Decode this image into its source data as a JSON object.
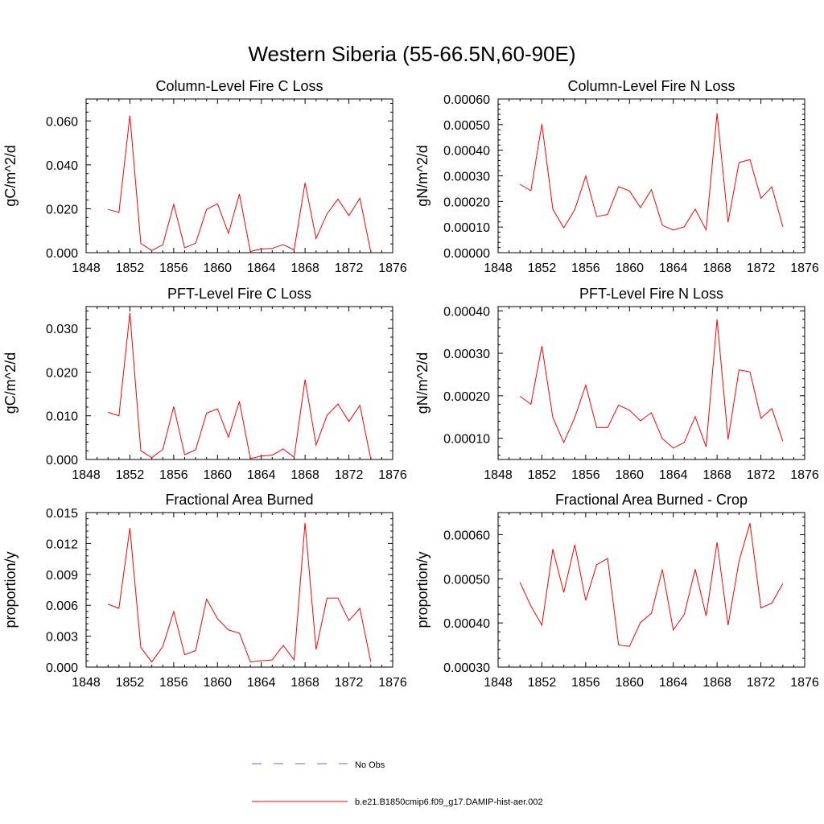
{
  "figure": {
    "title": "Western Siberia (55-66.5N,60-90E)",
    "line_color": "#ff0000",
    "obs_color": "#6666cc"
  },
  "legend": {
    "obs_label": "No Obs",
    "model_label": "b.e21.B1850cmip6.f09_g17.DAMIP-hist-aer.002"
  },
  "chart_data": [
    {
      "type": "line",
      "title": "Column-Level Fire C Loss",
      "ylabel": "gC/m^2/d",
      "xlim": [
        1848,
        1876
      ],
      "xticks": [
        "1848",
        "1852",
        "1856",
        "1860",
        "1864",
        "1868",
        "1872",
        "1876"
      ],
      "ylim": [
        0,
        0.07
      ],
      "yticks": [
        "0.000",
        "0.020",
        "0.040",
        "0.060"
      ],
      "ytick_values": [
        0,
        0.02,
        0.04,
        0.06
      ],
      "x": [
        1850,
        1851,
        1852,
        1853,
        1854,
        1855,
        1856,
        1857,
        1858,
        1859,
        1860,
        1861,
        1862,
        1863,
        1864,
        1865,
        1866,
        1867,
        1868,
        1869,
        1870,
        1871,
        1872,
        1873,
        1874
      ],
      "values": [
        0.0197,
        0.0183,
        0.0625,
        0.0042,
        0.001,
        0.0036,
        0.022,
        0.0022,
        0.0043,
        0.0197,
        0.0223,
        0.0088,
        0.0267,
        0.0005,
        0.0017,
        0.0019,
        0.0037,
        0.0012,
        0.0318,
        0.0065,
        0.0177,
        0.0244,
        0.0169,
        0.0248,
        0.0003
      ]
    },
    {
      "type": "line",
      "title": "Column-Level Fire N Loss",
      "ylabel": "gN/m^2/d",
      "xlim": [
        1848,
        1876
      ],
      "xticks": [
        "1848",
        "1852",
        "1856",
        "1860",
        "1864",
        "1868",
        "1872",
        "1876"
      ],
      "ylim": [
        0,
        0.0006
      ],
      "yticks": [
        "0.00000",
        "0.00010",
        "0.00020",
        "0.00030",
        "0.00040",
        "0.00050",
        "0.00060"
      ],
      "ytick_values": [
        0,
        0.0001,
        0.0002,
        0.0003,
        0.0004,
        0.0005,
        0.0006
      ],
      "x": [
        1850,
        1851,
        1852,
        1853,
        1854,
        1855,
        1856,
        1857,
        1858,
        1859,
        1860,
        1861,
        1862,
        1863,
        1864,
        1865,
        1866,
        1867,
        1868,
        1869,
        1870,
        1871,
        1872,
        1873,
        1874
      ],
      "values": [
        0.000267,
        0.000242,
        0.000502,
        0.00017,
        9.7e-05,
        0.000168,
        0.000299,
        0.000141,
        0.000149,
        0.000258,
        0.000241,
        0.000176,
        0.000246,
        0.000107,
        8.8e-05,
        0.000101,
        0.00017,
        8.9e-05,
        0.000544,
        0.000119,
        0.000352,
        0.000363,
        0.000212,
        0.000257,
        0.000101
      ]
    },
    {
      "type": "line",
      "title": "PFT-Level Fire C Loss",
      "ylabel": "gC/m^2/d",
      "xlim": [
        1848,
        1876
      ],
      "xticks": [
        "1848",
        "1852",
        "1856",
        "1860",
        "1864",
        "1868",
        "1872",
        "1876"
      ],
      "ylim": [
        0,
        0.035
      ],
      "yticks": [
        "0.000",
        "0.010",
        "0.020",
        "0.030"
      ],
      "ytick_values": [
        0,
        0.01,
        0.02,
        0.03
      ],
      "x": [
        1850,
        1851,
        1852,
        1853,
        1854,
        1855,
        1856,
        1857,
        1858,
        1859,
        1860,
        1861,
        1862,
        1863,
        1864,
        1865,
        1866,
        1867,
        1868,
        1869,
        1870,
        1871,
        1872,
        1873,
        1874
      ],
      "values": [
        0.0108,
        0.01,
        0.0335,
        0.002,
        0.0004,
        0.0023,
        0.0121,
        0.0011,
        0.0022,
        0.0106,
        0.0116,
        0.0051,
        0.0133,
        0.0002,
        0.0008,
        0.001,
        0.0024,
        0.0005,
        0.0183,
        0.0033,
        0.0101,
        0.0127,
        0.0087,
        0.0124,
        0.0001
      ]
    },
    {
      "type": "line",
      "title": "PFT-Level Fire N Loss",
      "ylabel": "gN/m^2/d",
      "xlim": [
        1848,
        1876
      ],
      "xticks": [
        "1848",
        "1852",
        "1856",
        "1860",
        "1864",
        "1868",
        "1872",
        "1876"
      ],
      "ylim": [
        5e-05,
        0.00041
      ],
      "yticks": [
        "0.00010",
        "0.00020",
        "0.00030",
        "0.00040"
      ],
      "ytick_values": [
        0.0001,
        0.0002,
        0.0003,
        0.0004
      ],
      "x": [
        1850,
        1851,
        1852,
        1853,
        1854,
        1855,
        1856,
        1857,
        1858,
        1859,
        1860,
        1861,
        1862,
        1863,
        1864,
        1865,
        1866,
        1867,
        1868,
        1869,
        1870,
        1871,
        1872,
        1873,
        1874
      ],
      "values": [
        0.000199,
        0.00018,
        0.000317,
        0.000149,
        9e-05,
        0.000149,
        0.000225,
        0.000125,
        0.000125,
        0.000178,
        0.000166,
        0.000141,
        0.00016,
        9.9e-05,
        7.7e-05,
        9e-05,
        0.000151,
        8e-05,
        0.00038,
        9.7e-05,
        0.000261,
        0.000256,
        0.000147,
        0.00017,
        9.3e-05
      ]
    },
    {
      "type": "line",
      "title": "Fractional Area Burned",
      "ylabel": "proportion/y",
      "xlim": [
        1848,
        1876
      ],
      "xticks": [
        "1848",
        "1852",
        "1856",
        "1860",
        "1864",
        "1868",
        "1872",
        "1876"
      ],
      "ylim": [
        0,
        0.015
      ],
      "yticks": [
        "0.000",
        "0.003",
        "0.006",
        "0.009",
        "0.012",
        "0.015"
      ],
      "ytick_values": [
        0,
        0.003,
        0.006,
        0.009,
        0.012,
        0.015
      ],
      "x": [
        1850,
        1851,
        1852,
        1853,
        1854,
        1855,
        1856,
        1857,
        1858,
        1859,
        1860,
        1861,
        1862,
        1863,
        1864,
        1865,
        1866,
        1867,
        1868,
        1869,
        1870,
        1871,
        1872,
        1873,
        1874
      ],
      "values": [
        0.0061,
        0.0057,
        0.0135,
        0.0019,
        0.0005,
        0.002,
        0.0054,
        0.0012,
        0.0016,
        0.0066,
        0.0047,
        0.0036,
        0.0033,
        0.0005,
        0.0006,
        0.0007,
        0.0021,
        0.0007,
        0.014,
        0.0017,
        0.0067,
        0.0067,
        0.0045,
        0.0057,
        0.0005
      ]
    },
    {
      "type": "line",
      "title": "Fractional Area Burned - Crop",
      "ylabel": "proportion/y",
      "xlim": [
        1848,
        1876
      ],
      "xticks": [
        "1848",
        "1852",
        "1856",
        "1860",
        "1864",
        "1868",
        "1872",
        "1876"
      ],
      "ylim": [
        0.0003,
        0.00065
      ],
      "yticks": [
        "0.00030",
        "0.00040",
        "0.00050",
        "0.00060"
      ],
      "ytick_values": [
        0.0003,
        0.0004,
        0.0005,
        0.0006
      ],
      "x": [
        1850,
        1851,
        1852,
        1853,
        1854,
        1855,
        1856,
        1857,
        1858,
        1859,
        1860,
        1861,
        1862,
        1863,
        1864,
        1865,
        1866,
        1867,
        1868,
        1869,
        1870,
        1871,
        1872,
        1873,
        1874
      ],
      "values": [
        0.000492,
        0.000438,
        0.000395,
        0.000567,
        0.000469,
        0.000577,
        0.000451,
        0.000532,
        0.000546,
        0.00035,
        0.000347,
        0.000401,
        0.000422,
        0.000521,
        0.000384,
        0.000419,
        0.000522,
        0.000416,
        0.000583,
        0.000395,
        0.00054,
        0.000626,
        0.000434,
        0.000445,
        0.000489
      ]
    }
  ]
}
